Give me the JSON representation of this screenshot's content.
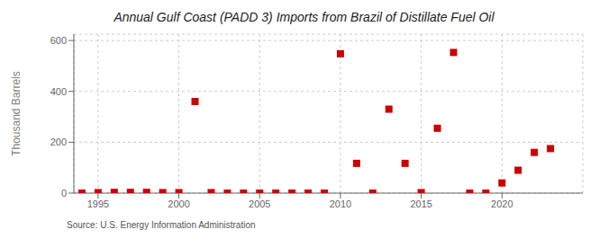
{
  "chart_data": {
    "type": "scatter",
    "title": "Annual Gulf Coast (PADD 3) Imports from Brazil of Distillate Fuel Oil",
    "ylabel": "Thousand Barrels",
    "annotations": [
      "Source: U.S. Energy Information Administration"
    ],
    "x": [
      1994,
      1995,
      1996,
      1997,
      1998,
      1999,
      2000,
      2001,
      2002,
      2003,
      2004,
      2005,
      2006,
      2007,
      2008,
      2009,
      2010,
      2011,
      2012,
      2013,
      2014,
      2015,
      2016,
      2017,
      2018,
      2019,
      2020,
      2021,
      2022,
      2023
    ],
    "values": [
      0,
      2,
      3,
      3,
      3,
      2,
      2,
      360,
      2,
      0,
      0,
      0,
      0,
      0,
      0,
      0,
      548,
      117,
      0,
      330,
      117,
      2,
      255,
      553,
      0,
      0,
      40,
      90,
      160,
      175
    ],
    "color": "#cc0000",
    "marker": "square",
    "xlim": [
      1993.5,
      2025
    ],
    "ylim": [
      0,
      625
    ],
    "xticks": [
      1995,
      2000,
      2005,
      2010,
      2015,
      2020
    ],
    "yticks": [
      0,
      200,
      400,
      600
    ],
    "grid": true
  }
}
